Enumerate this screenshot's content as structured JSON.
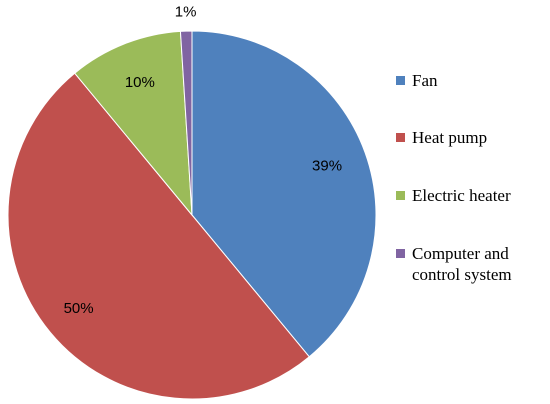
{
  "chart_data": {
    "type": "pie",
    "title": "",
    "slices": [
      {
        "label": "Fan",
        "value": 39,
        "data_label": "39%",
        "color": "#4F81BD"
      },
      {
        "label": "Heat pump",
        "value": 50,
        "data_label": "50%",
        "color": "#C0504D"
      },
      {
        "label": "Electric heater",
        "value": 10,
        "data_label": "10%",
        "color": "#9BBB59"
      },
      {
        "label": "Computer and control system",
        "value": 1,
        "data_label": "1%",
        "color": "#8064A2"
      }
    ],
    "legend": {
      "position": "right",
      "items": [
        "Fan",
        "Heat pump",
        "Electric heater",
        "Computer and\ncontrol system"
      ]
    },
    "start_angle": "12 o'clock",
    "direction": "clockwise"
  }
}
